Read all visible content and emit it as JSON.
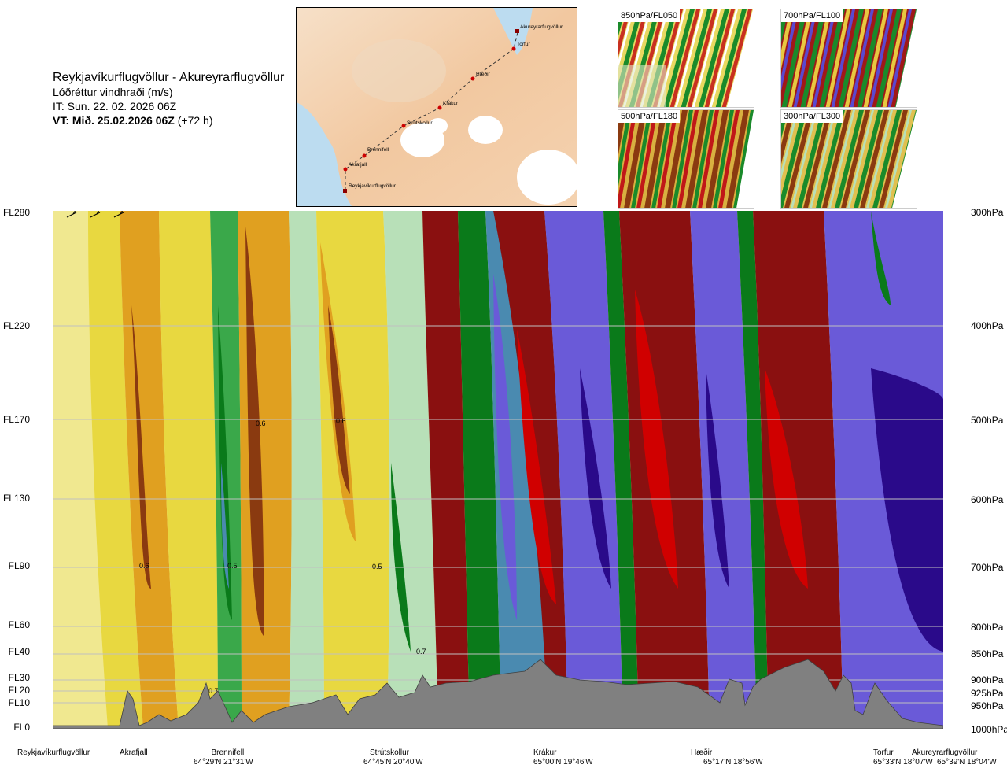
{
  "header": {
    "route": "Reykjavíkurflugvöllur - Akureyrarflugvöllur",
    "variable": "Lóðréttur vindhraði (m/s)",
    "issue_time": "IT: Sun. 22. 02. 2026 06Z",
    "valid_prefix": "VT: Mið. 25.02.2026 06Z",
    "valid_suffix": "(+72 h)"
  },
  "route_map": {
    "points": [
      {
        "name": "Akureyrarflugvöllur"
      },
      {
        "name": "Torfur"
      },
      {
        "name": "Hæðir"
      },
      {
        "name": "Krákur"
      },
      {
        "name": "Strútskollur"
      },
      {
        "name": "Brennifell"
      },
      {
        "name": "Akrafjall"
      },
      {
        "name": "Reykjavíkurflugvöllur"
      }
    ]
  },
  "thumbnails": [
    {
      "label": "850hPa/FL050"
    },
    {
      "label": "700hPa/FL100"
    },
    {
      "label": "500hPa/FL180"
    },
    {
      "label": "300hPa/FL300"
    }
  ],
  "flight_levels": [
    "FL280",
    "FL220",
    "FL170",
    "FL130",
    "FL90",
    "FL60",
    "FL40",
    "FL30",
    "FL20",
    "FL10",
    "FL0"
  ],
  "pressure_levels": [
    "300hPa",
    "400hPa",
    "500hPa",
    "600hPa",
    "700hPa",
    "800hPa",
    "850hPa",
    "900hPa",
    "925hPa",
    "950hPa",
    "1000hPa"
  ],
  "stations": [
    {
      "name": "Reykjavíkurflugvöllur",
      "coord": ""
    },
    {
      "name": "Akrafjall",
      "coord": ""
    },
    {
      "name": "Brennifell",
      "coord": "64°29'N 21°31'W"
    },
    {
      "name": "Strútskollur",
      "coord": "64°45'N 20°40'W"
    },
    {
      "name": "Krákur",
      "coord": "65°00'N 19°46'W"
    },
    {
      "name": "Hæðir",
      "coord": "65°17'N 18°56'W"
    },
    {
      "name": "Torfur",
      "coord": "65°33'N 18°07'W"
    },
    {
      "name": "Akureyrarflugvöllur",
      "coord": "65°39'N 18°04'W"
    }
  ],
  "contour_labels": [
    "0.6",
    "0.6",
    "0.6",
    "0.5",
    "0.5",
    "0.7",
    "0.7"
  ],
  "colors": {
    "strong_down": "#2a0a8a",
    "down": "#6a5ad8",
    "weak_down": "#4a8ab0",
    "green_dark": "#0a7a1a",
    "green": "#3aa84a",
    "green_light": "#b8e0b8",
    "neutral": "#f0f0c0",
    "yellow": "#e8d840",
    "orange": "#e0a020",
    "brown": "#8a3a10",
    "dark_red": "#8a1010",
    "red": "#d00000",
    "terrain": "#808080"
  }
}
